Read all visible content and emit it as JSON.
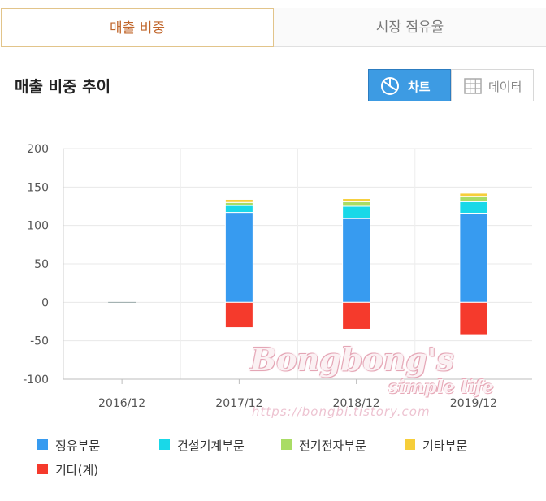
{
  "tabs": [
    {
      "label": "매출 비중",
      "active": true
    },
    {
      "label": "시장 점유율",
      "active": false
    }
  ],
  "section_title": "매출 비중 추이",
  "view_toggle": {
    "chart_label": "차트",
    "data_label": "데이터",
    "chart_icon": "pie-chart-icon",
    "data_icon": "table-grid-icon",
    "selected": "chart"
  },
  "colors": {
    "accent": "#3d9be3",
    "tab_active_text": "#c0652a"
  },
  "chart_data": {
    "type": "bar",
    "stacked": true,
    "categories": [
      "2016/12",
      "2017/12",
      "2018/12",
      "2019/12"
    ],
    "ylim": [
      -100,
      200
    ],
    "yticks": [
      200,
      150,
      100,
      50,
      0,
      -50,
      -100
    ],
    "xlabel": "",
    "ylabel": "",
    "grid": true,
    "legend_position": "bottom",
    "series": [
      {
        "name": "정유부문",
        "color": "#379bf0",
        "values": [
          0,
          117,
          109,
          116
        ]
      },
      {
        "name": "건설기계부문",
        "color": "#19d8e8",
        "values": [
          0,
          9,
          16,
          15
        ]
      },
      {
        "name": "전기전자부문",
        "color": "#a9dc65",
        "values": [
          0,
          4,
          6,
          7
        ]
      },
      {
        "name": "기타부문",
        "color": "#f6ce3a",
        "values": [
          0,
          4,
          4,
          4
        ]
      },
      {
        "name": "기타(계)",
        "color": "#f53a2c",
        "values": [
          0,
          -33,
          -35,
          -42
        ]
      }
    ]
  },
  "watermark": {
    "line1": "Bongbong's",
    "line2": "simple life",
    "line3": "https://bongbi.tistory.com"
  }
}
